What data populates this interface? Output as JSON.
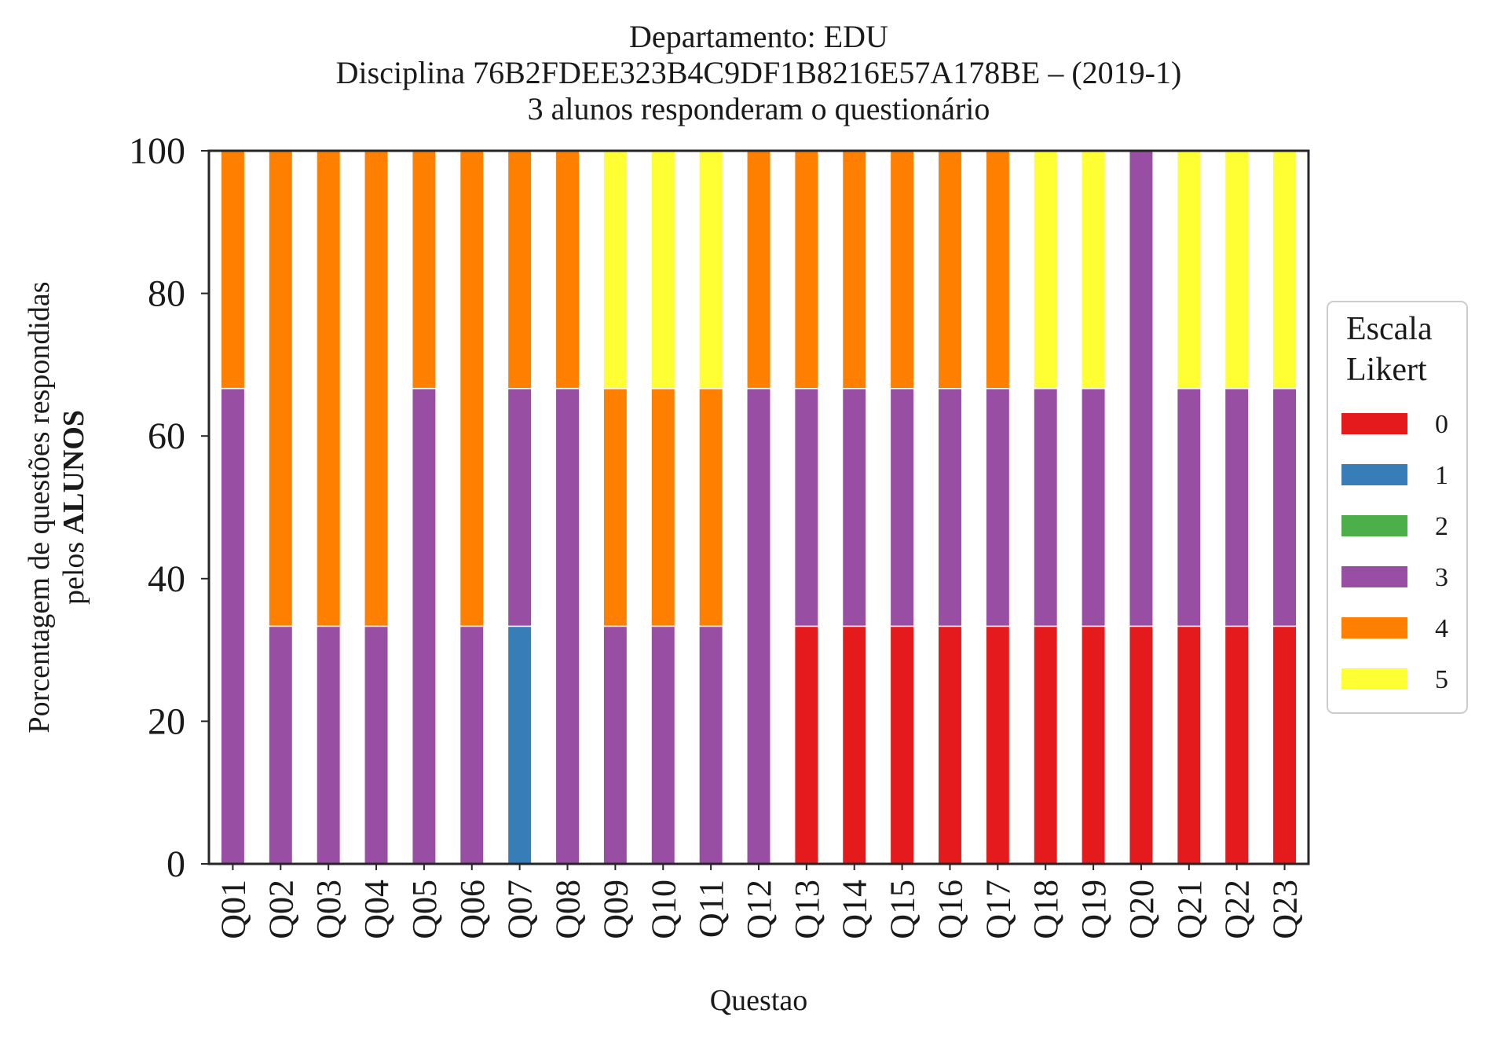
{
  "chart_data": {
    "type": "bar",
    "stacked": true,
    "title_lines": [
      "Departamento: EDU",
      "Disciplina 76B2FDEE323B4C9DF1B8216E57A178BE – (2019-1)",
      "3 alunos responderam o questionário"
    ],
    "xlabel": "Questao",
    "ylabel_line1": "Porcentagem de questões respondidas",
    "ylabel_line2_prefix": "pelos ",
    "ylabel_line2_bold": "ALUNOS",
    "ylim": [
      0,
      100
    ],
    "yticks": [
      0,
      20,
      40,
      60,
      80,
      100
    ],
    "categories": [
      "Q01",
      "Q02",
      "Q03",
      "Q04",
      "Q05",
      "Q06",
      "Q07",
      "Q08",
      "Q09",
      "Q10",
      "Q11",
      "Q12",
      "Q13",
      "Q14",
      "Q15",
      "Q16",
      "Q17",
      "Q18",
      "Q19",
      "Q20",
      "Q21",
      "Q22",
      "Q23"
    ],
    "legend": {
      "title_lines": [
        "Escala",
        "Likert"
      ],
      "placement": "center-right, outside plot"
    },
    "grid": false,
    "series": [
      {
        "name": "0",
        "color": "#e41a1c",
        "values": [
          0,
          0,
          0,
          0,
          0,
          0,
          0,
          0,
          0,
          0,
          0,
          0,
          33.33,
          33.33,
          33.33,
          33.33,
          33.33,
          33.33,
          33.33,
          33.33,
          33.33,
          33.33,
          33.33
        ]
      },
      {
        "name": "1",
        "color": "#377eb8",
        "values": [
          0,
          0,
          0,
          0,
          0,
          0,
          33.33,
          0,
          0,
          0,
          0,
          0,
          0,
          0,
          0,
          0,
          0,
          0,
          0,
          0,
          0,
          0,
          0
        ]
      },
      {
        "name": "2",
        "color": "#4daf4a",
        "values": [
          0,
          0,
          0,
          0,
          0,
          0,
          0,
          0,
          0,
          0,
          0,
          0,
          0,
          0,
          0,
          0,
          0,
          0,
          0,
          0,
          0,
          0,
          0
        ]
      },
      {
        "name": "3",
        "color": "#984ea3",
        "values": [
          66.67,
          33.33,
          33.33,
          33.33,
          66.67,
          33.33,
          33.33,
          66.67,
          33.33,
          33.33,
          33.33,
          66.67,
          33.33,
          33.33,
          33.33,
          33.33,
          33.33,
          33.33,
          33.33,
          66.67,
          33.33,
          33.33,
          33.33
        ]
      },
      {
        "name": "4",
        "color": "#ff7f00",
        "values": [
          33.33,
          66.67,
          66.67,
          66.67,
          33.33,
          66.67,
          33.33,
          33.33,
          33.33,
          33.33,
          33.33,
          33.33,
          33.33,
          33.33,
          33.33,
          33.33,
          33.33,
          0,
          0,
          0,
          0,
          0,
          0
        ]
      },
      {
        "name": "5",
        "color": "#ffff33",
        "values": [
          0,
          0,
          0,
          0,
          0,
          0,
          0,
          0,
          33.33,
          33.33,
          33.33,
          0,
          0,
          0,
          0,
          0,
          0,
          33.33,
          33.33,
          0,
          33.33,
          33.33,
          33.33
        ]
      }
    ]
  }
}
